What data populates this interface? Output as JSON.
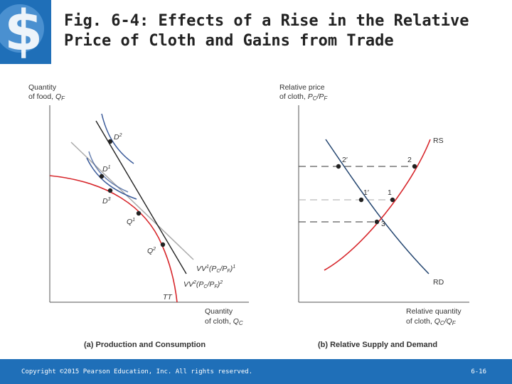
{
  "slide": {
    "title_line1": "Fig. 6-4: Effects of a Rise in the Relative",
    "title_line2": "Price of Cloth and Gains from Trade",
    "copyright": "Copyright ©2015 Pearson Education, Inc. All rights reserved.",
    "slide_number": "6-16"
  },
  "colors": {
    "footer": "#1f6fb8",
    "ppf_curve": "#d7262b",
    "indifference_curve": "#3b5b9a",
    "budget_line": "#222222",
    "old_budget_line": "#aaaaaa",
    "logo_blue": "#1f6fb8"
  },
  "panel_a": {
    "y_axis_label_1": "Quantity",
    "y_axis_label_2": "of food, ",
    "y_axis_var": "Q",
    "y_axis_sub": "F",
    "x_axis_label_1": "Quantity",
    "x_axis_label_2": "of cloth, ",
    "x_axis_var": "Q",
    "x_axis_sub": "C",
    "caption": "(a) Production and Consumption",
    "points": {
      "d2": "D",
      "d2_sup": "2",
      "d1": "D",
      "d1_sup": "1",
      "d3": "D",
      "d3_sup": "3",
      "q1": "Q",
      "q1_sup": "1",
      "q2": "Q",
      "q2_sup": "2"
    },
    "vv1": {
      "name": "VV",
      "sup": "1",
      "expr_open": "(P",
      "c": "C",
      "slash": "/P",
      "f": "F",
      "close": ")",
      "close_sup": "1"
    },
    "vv2": {
      "name": "VV",
      "sup": "2",
      "expr_open": "(P",
      "c": "C",
      "slash": "/P",
      "f": "F",
      "close": ")",
      "close_sup": "2"
    },
    "tt": "TT"
  },
  "panel_b": {
    "y_axis_label_1": "Relative price",
    "y_axis_label_2": "of cloth, ",
    "y_var_a": "P",
    "y_sub_a": "C",
    "y_slash": "/P",
    "y_sub_b": "F",
    "x_axis_label_1": "Relative quantity",
    "x_axis_label_2": "of cloth, ",
    "x_var_a": "Q",
    "x_sub_a": "C",
    "x_slash": "/Q",
    "x_sub_b": "F",
    "caption": "(b) Relative Supply and Demand",
    "rs": "RS",
    "rd": "RD",
    "pt_2prime": "2′",
    "pt_2": "2",
    "pt_1prime": "1′",
    "pt_1": "1",
    "pt_3": "3"
  }
}
